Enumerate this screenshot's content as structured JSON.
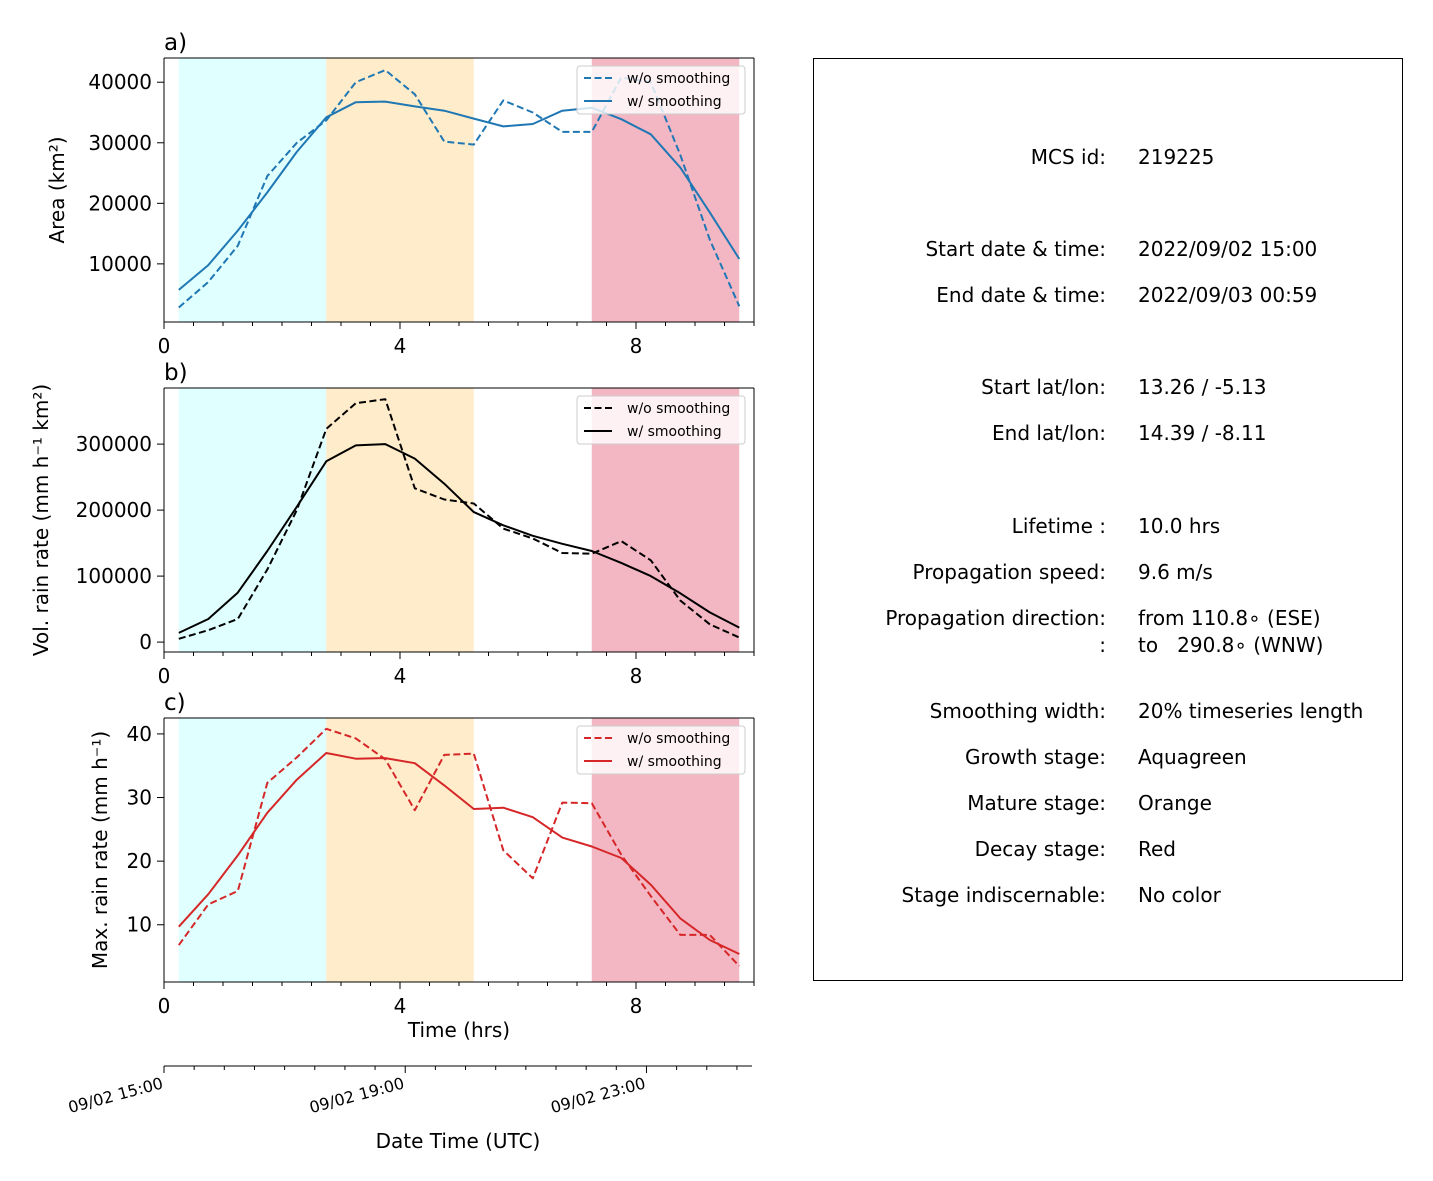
{
  "colors": {
    "growth": "#e0ffff",
    "mature": "#ffecca",
    "decay": "#f3b7c4",
    "area": "#1f77b4",
    "volrain": "#000000",
    "maxrain": "#d62728"
  },
  "time_axis": {
    "xlabel": "Time (hrs)",
    "date_label": "Date Time (UTC)",
    "date_ticks": [
      "09/02 15:00",
      "09/02 19:00",
      "09/02 23:00"
    ]
  },
  "chart_data": [
    {
      "type": "line",
      "panel": "a)",
      "ylabel": "Area  (km²)",
      "xlim": [
        0,
        10
      ],
      "ylim": [
        400,
        44000
      ],
      "xticks": [
        0,
        4,
        8
      ],
      "yticks": [
        10000,
        20000,
        30000,
        40000
      ],
      "x": [
        0.25,
        0.75,
        1.25,
        1.75,
        2.25,
        2.75,
        3.25,
        3.75,
        4.25,
        4.75,
        5.25,
        5.75,
        6.25,
        6.75,
        7.25,
        7.75,
        8.25,
        8.75,
        9.25,
        9.75
      ],
      "stages": {
        "growth": [
          0.25,
          2.75
        ],
        "mature": [
          2.75,
          5.25
        ],
        "decay": [
          7.25,
          9.75
        ]
      },
      "series": [
        {
          "name": "w/o smoothing",
          "style": "dashed",
          "values": [
            2800,
            7000,
            13000,
            24500,
            30000,
            33700,
            40000,
            42000,
            38000,
            30200,
            29700,
            37000,
            35000,
            31800,
            31800,
            40800,
            40000,
            28000,
            14000,
            3000
          ]
        },
        {
          "name": "w/ smoothing",
          "style": "solid",
          "values": [
            5700,
            9800,
            15500,
            21800,
            28500,
            34200,
            36700,
            36800,
            36000,
            35300,
            34000,
            32700,
            33100,
            35300,
            35800,
            33900,
            31400,
            25900,
            18500,
            10800
          ]
        }
      ],
      "legend": "top-right"
    },
    {
      "type": "line",
      "panel": "b)",
      "ylabel": "Vol. rain rate (mm h⁻¹ km²)",
      "xlim": [
        0,
        10
      ],
      "ylim": [
        -15000,
        385000
      ],
      "xticks": [
        0,
        4,
        8
      ],
      "yticks": [
        0,
        100000,
        200000,
        300000
      ],
      "x": [
        0.25,
        0.75,
        1.25,
        1.75,
        2.25,
        2.75,
        3.25,
        3.75,
        4.25,
        4.75,
        5.25,
        5.75,
        6.25,
        6.75,
        7.25,
        7.75,
        8.25,
        8.75,
        9.25,
        9.75
      ],
      "stages": {
        "growth": [
          0.25,
          2.75
        ],
        "mature": [
          2.75,
          5.25
        ],
        "decay": [
          7.25,
          9.75
        ]
      },
      "series": [
        {
          "name": "w/o smoothing",
          "style": "dashed",
          "values": [
            5000,
            18000,
            35000,
            110000,
            200000,
            323000,
            362000,
            368000,
            233000,
            216000,
            210000,
            172000,
            157000,
            135000,
            134000,
            153000,
            124000,
            63000,
            27000,
            7000
          ]
        },
        {
          "name": "w/ smoothing",
          "style": "solid",
          "values": [
            14000,
            35000,
            75000,
            138000,
            205000,
            274000,
            298000,
            300000,
            278000,
            240000,
            197000,
            177000,
            161000,
            149000,
            138000,
            120000,
            100000,
            74000,
            45000,
            22000
          ]
        }
      ],
      "legend": "top-right"
    },
    {
      "type": "line",
      "panel": "c)",
      "ylabel": "Max. rain rate  (mm h⁻¹)",
      "xlim": [
        0,
        10
      ],
      "ylim": [
        1,
        42.5
      ],
      "xticks": [
        0,
        4,
        8
      ],
      "yticks": [
        10,
        20,
        30,
        40
      ],
      "x": [
        0.25,
        0.75,
        1.25,
        1.75,
        2.25,
        2.75,
        3.25,
        3.75,
        4.25,
        4.75,
        5.25,
        5.75,
        6.25,
        6.75,
        7.25,
        7.75,
        8.25,
        8.75,
        9.25,
        9.75
      ],
      "stages": {
        "growth": [
          0.25,
          2.75
        ],
        "mature": [
          2.75,
          5.25
        ],
        "decay": [
          7.25,
          9.75
        ]
      },
      "series": [
        {
          "name": "w/o smoothing",
          "style": "dashed",
          "values": [
            6.8,
            13.2,
            15.3,
            32.3,
            36.3,
            40.8,
            39.3,
            36.0,
            28.0,
            36.7,
            36.9,
            21.7,
            17.3,
            29.2,
            29.1,
            21.0,
            14.5,
            8.4,
            8.4,
            3.5
          ]
        },
        {
          "name": "w/ smoothing",
          "style": "solid",
          "values": [
            9.7,
            14.8,
            20.9,
            27.6,
            32.8,
            37.0,
            36.1,
            36.2,
            35.4,
            31.9,
            28.2,
            28.4,
            26.9,
            23.7,
            22.3,
            20.5,
            16.3,
            11.0,
            7.6,
            5.4
          ]
        }
      ],
      "legend": "top-right"
    }
  ],
  "info_panel": {
    "rows": [
      {
        "label": "MCS id:",
        "value": "219225"
      },
      {
        "label": "Start date & time:",
        "value": "2022/09/02 15:00"
      },
      {
        "label": "End date & time:",
        "value": "2022/09/03 00:59"
      },
      {
        "label": "Start lat/lon:",
        "value": "13.26 / -5.13"
      },
      {
        "label": "End lat/lon:",
        "value": "14.39 / -8.11"
      },
      {
        "label": "Lifetime :",
        "value": "10.0 hrs"
      },
      {
        "label": "Propagation speed:",
        "value": "9.6 m/s"
      },
      {
        "label": "Propagation direction:",
        "value": "from 110.8∘ (ESE)"
      },
      {
        "label": ":",
        "value": "to   290.8∘ (WNW)"
      },
      {
        "label": "Smoothing width:",
        "value": "20% timeseries length"
      },
      {
        "label": "Growth stage:",
        "value": "Aquagreen"
      },
      {
        "label": "Mature stage:",
        "value": "Orange"
      },
      {
        "label": "Decay stage:",
        "value": "Red"
      },
      {
        "label": "Stage indiscernable:",
        "value": "No color"
      }
    ]
  }
}
